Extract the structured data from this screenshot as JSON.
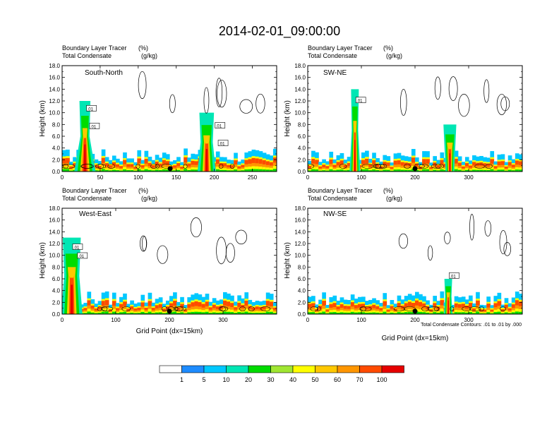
{
  "title": "2014-02-01_09:00:00",
  "colors": {
    "palette": [
      "#ffffff",
      "#1e8cff",
      "#00c8ff",
      "#00e6b4",
      "#00dc00",
      "#a0e632",
      "#ffff00",
      "#ffc800",
      "#ff9600",
      "#ff4b00",
      "#e60000"
    ],
    "contour": "#000000",
    "frame": "#000000"
  },
  "chart_data": [
    {
      "type": "heatmap",
      "title": "South-North",
      "labels": {
        "left1": "Boundary Layer Tracer",
        "left2": "Total Condensate",
        "right1": "(%)",
        "right2": "(g/kg)"
      },
      "xlabel": "",
      "ylabel": "Height (km)",
      "xlim": [
        0,
        282
      ],
      "ylim": [
        0,
        18
      ],
      "xticks": [
        0,
        50,
        100,
        150,
        200,
        250
      ],
      "yticks": [
        "0.0",
        "2.0",
        "4.0",
        "6.0",
        "8.0",
        "10.0",
        "12.0",
        "14.0",
        "16.0",
        "18.0"
      ],
      "marker_x": 142,
      "contour_labels": [
        ".01",
        ".01",
        ".01",
        ".01"
      ],
      "plumes": [
        {
          "x": 30,
          "width": 6,
          "top": 12,
          "base_width": 14
        },
        {
          "x": 190,
          "width": 8,
          "top": 10,
          "base_width": 12
        }
      ]
    },
    {
      "type": "heatmap",
      "title": "SW-NE",
      "labels": {
        "left1": "Boundary Layer Tracer",
        "left2": "Total Condensate",
        "right1": "(%)",
        "right2": "(g/kg)"
      },
      "xlabel": "",
      "ylabel": "Height (km)",
      "xlim": [
        0,
        400
      ],
      "ylim": [
        0,
        18
      ],
      "xticks": [
        0,
        100,
        200,
        300
      ],
      "yticks": [
        "0.0",
        "2.0",
        "4.0",
        "6.0",
        "8.0",
        "10.0",
        "12.0",
        "14.0",
        "16.0",
        "18.0"
      ],
      "marker_x": 200,
      "contour_labels": [
        ".01"
      ],
      "plumes": [
        {
          "x": 88,
          "width": 6,
          "top": 14,
          "base_width": 10
        },
        {
          "x": 265,
          "width": 10,
          "top": 8,
          "base_width": 8
        }
      ]
    },
    {
      "type": "heatmap",
      "title": "West-East",
      "labels": {
        "left1": "Boundary Layer Tracer",
        "left2": "Total Condensate",
        "right1": "(%)",
        "right2": "(g/kg)"
      },
      "xlabel": "Grid Point (dx=15km)",
      "ylabel": "Height (km)",
      "xlim": [
        0,
        400
      ],
      "ylim": [
        0,
        18
      ],
      "xticks": [
        0,
        100,
        200,
        300
      ],
      "yticks": [
        "0.0",
        "2.0",
        "4.0",
        "6.0",
        "8.0",
        "10.0",
        "12.0",
        "14.0",
        "16.0",
        "18.0"
      ],
      "marker_x": 200,
      "contour_labels": [
        ".01",
        ".01"
      ],
      "plumes": [
        {
          "x": 18,
          "width": 14,
          "top": 13,
          "base_width": 20
        }
      ]
    },
    {
      "type": "heatmap",
      "title": "NW-SE",
      "labels": {
        "left1": "Boundary Layer Tracer",
        "left2": "Total Condensate",
        "right1": "(%)",
        "right2": "(g/kg)"
      },
      "xlabel": "Grid Point (dx=15km)",
      "ylabel": "Height (km)",
      "xlim": [
        0,
        400
      ],
      "ylim": [
        0,
        18
      ],
      "xticks": [
        0,
        100,
        200,
        300
      ],
      "yticks": [
        "0.0",
        "2.0",
        "4.0",
        "6.0",
        "8.0",
        "10.0",
        "12.0",
        "14.0",
        "16.0",
        "18.0"
      ],
      "marker_x": 200,
      "contour_labels": [
        ".01"
      ],
      "note": "Total Condensate Contours: .01 to .01 by .000",
      "plumes": [
        {
          "x": 262,
          "width": 6,
          "top": 6,
          "base_width": 8
        }
      ]
    }
  ],
  "colorbar": {
    "labels": [
      "1",
      "5",
      "10",
      "20",
      "30",
      "40",
      "50",
      "60",
      "70",
      "100"
    ]
  }
}
